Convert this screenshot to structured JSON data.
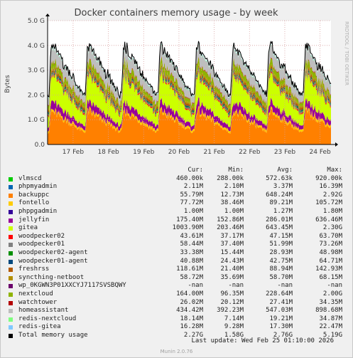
{
  "chart_data": {
    "type": "area",
    "title": "Docker containers memory usage - by week",
    "ylabel": "Bytes",
    "xlabel": "",
    "y_ticks": [
      "0.0",
      "1.0 G",
      "2.0 G",
      "3.0 G",
      "4.0 G",
      "5.0 G"
    ],
    "ylim": [
      0,
      5000000000
    ],
    "x_ticks": [
      "17 Feb",
      "18 Feb",
      "19 Feb",
      "20 Feb",
      "21 Feb",
      "22 Feb",
      "23 Feb",
      "24 Feb"
    ],
    "grid": true,
    "stacked": true,
    "side_label": "RRDTOOL / TOBI OETIKER",
    "columns": [
      "Cur:",
      "Min:",
      "Avg:",
      "Max:"
    ],
    "series": [
      {
        "name": "vlmscd",
        "color": "#00cc00",
        "cur": "460.00k",
        "min": "288.00k",
        "avg": "572.63k",
        "max": "920.00k",
        "base": 0.0005
      },
      {
        "name": "phpmyadmin",
        "color": "#0066b3",
        "cur": "2.11M",
        "min": "2.10M",
        "avg": "3.37M",
        "max": "16.39M",
        "base": 0.003
      },
      {
        "name": "backuppc",
        "color": "#ff8000",
        "cur": "55.79M",
        "min": "12.73M",
        "avg": "648.24M",
        "max": "2.92G",
        "base": 0.65
      },
      {
        "name": "fontello",
        "color": "#ffcc00",
        "cur": "77.72M",
        "min": "38.46M",
        "avg": "89.21M",
        "max": "105.72M",
        "base": 0.09
      },
      {
        "name": "phppgadmin",
        "color": "#330099",
        "cur": "1.00M",
        "min": "1.00M",
        "avg": "1.27M",
        "max": "1.80M",
        "base": 0.001
      },
      {
        "name": "jellyfin",
        "color": "#990099",
        "cur": "175.40M",
        "min": "152.86M",
        "avg": "286.01M",
        "max": "636.46M",
        "base": 0.29
      },
      {
        "name": "gitea",
        "color": "#ccff00",
        "cur": "1003.90M",
        "min": "203.46M",
        "avg": "643.45M",
        "max": "2.30G",
        "base": 0.64
      },
      {
        "name": "woodpecker02",
        "color": "#ff0000",
        "cur": "43.61M",
        "min": "37.17M",
        "avg": "47.15M",
        "max": "63.70M",
        "base": 0.047
      },
      {
        "name": "woodpecker01",
        "color": "#808080",
        "cur": "58.44M",
        "min": "37.40M",
        "avg": "51.99M",
        "max": "73.26M",
        "base": 0.052
      },
      {
        "name": "woodpecker02-agent",
        "color": "#008f00",
        "cur": "33.38M",
        "min": "15.44M",
        "avg": "28.93M",
        "max": "48.98M",
        "base": 0.029
      },
      {
        "name": "woodpecker01-agent",
        "color": "#00487d",
        "cur": "40.88M",
        "min": "24.43M",
        "avg": "42.75M",
        "max": "64.71M",
        "base": 0.043
      },
      {
        "name": "freshrss",
        "color": "#b35a00",
        "cur": "118.61M",
        "min": "21.40M",
        "avg": "88.94M",
        "max": "142.93M",
        "base": 0.089
      },
      {
        "name": "syncthing-netboot",
        "color": "#b38f00",
        "cur": "58.72M",
        "min": "35.69M",
        "avg": "58.70M",
        "max": "68.15M",
        "base": 0.059
      },
      {
        "name": "wp_0KGWN3P01XXCYJ7117SVSBQWY",
        "color": "#6b006b",
        "cur": "-nan",
        "min": "-nan",
        "avg": "-nan",
        "max": "-nan",
        "base": 0
      },
      {
        "name": "nextcloud",
        "color": "#8fb300",
        "cur": "164.00M",
        "min": "96.35M",
        "avg": "228.64M",
        "max": "2.00G",
        "base": 0.23
      },
      {
        "name": "watchtower",
        "color": "#b30000",
        "cur": "26.02M",
        "min": "20.12M",
        "avg": "27.41M",
        "max": "34.35M",
        "base": 0.027
      },
      {
        "name": "homeassistant",
        "color": "#bebebe",
        "cur": "434.42M",
        "min": "392.23M",
        "avg": "547.03M",
        "max": "898.68M",
        "base": 0.55
      },
      {
        "name": "redis-nextcloud",
        "color": "#80ff80",
        "cur": "18.14M",
        "min": "7.14M",
        "avg": "19.21M",
        "max": "34.87M",
        "base": 0.019
      },
      {
        "name": "redis-gitea",
        "color": "#80c9ff",
        "cur": "16.28M",
        "min": "9.28M",
        "avg": "17.30M",
        "max": "22.47M",
        "base": 0.017
      },
      {
        "name": "Total memory usage",
        "color": "#000000",
        "cur": "2.27G",
        "min": "1.58G",
        "avg": "2.76G",
        "max": "5.19G",
        "is_total": true
      }
    ]
  },
  "footer": {
    "last_update": "Last update: Wed Feb 25 01:10:00 2026",
    "munin": "Munin 2.0.76"
  }
}
